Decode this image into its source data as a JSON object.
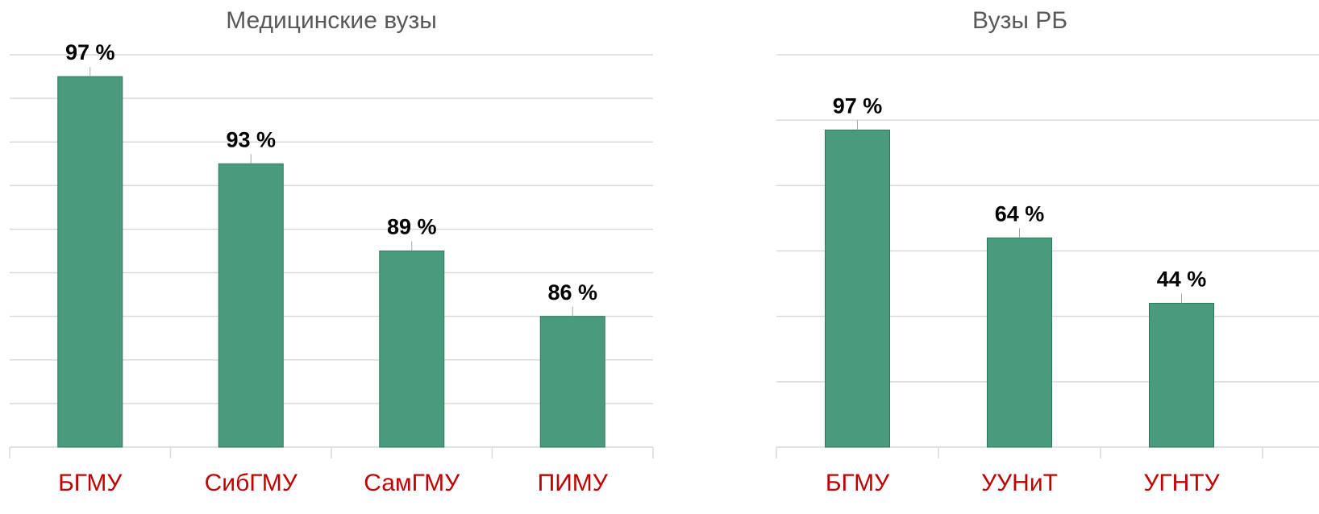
{
  "chart_data": [
    {
      "type": "bar",
      "title": "Медицинские вузы",
      "categories": [
        "БГМУ",
        "СибГМУ",
        "СамГМУ",
        "ПИМУ"
      ],
      "values": [
        97,
        93,
        89,
        86
      ],
      "value_labels": [
        "97 %",
        "93 %",
        "89 %",
        "86 %"
      ],
      "color": "#4a9a7e",
      "ylim": [
        80,
        98
      ],
      "yticks": [
        80,
        82,
        84,
        86,
        88,
        90,
        92,
        94,
        96,
        98
      ],
      "grid": true
    },
    {
      "type": "bar",
      "title": "Вузы РБ",
      "categories": [
        "БГМУ",
        "УУНиТ",
        "УГНТУ"
      ],
      "values": [
        97,
        64,
        44
      ],
      "value_labels": [
        "97 %",
        "64 %",
        "44 %"
      ],
      "color": "#4a9a7e",
      "ylim": [
        0,
        120
      ],
      "yticks": [
        0,
        20,
        40,
        60,
        80,
        100,
        120
      ],
      "grid": true
    }
  ]
}
